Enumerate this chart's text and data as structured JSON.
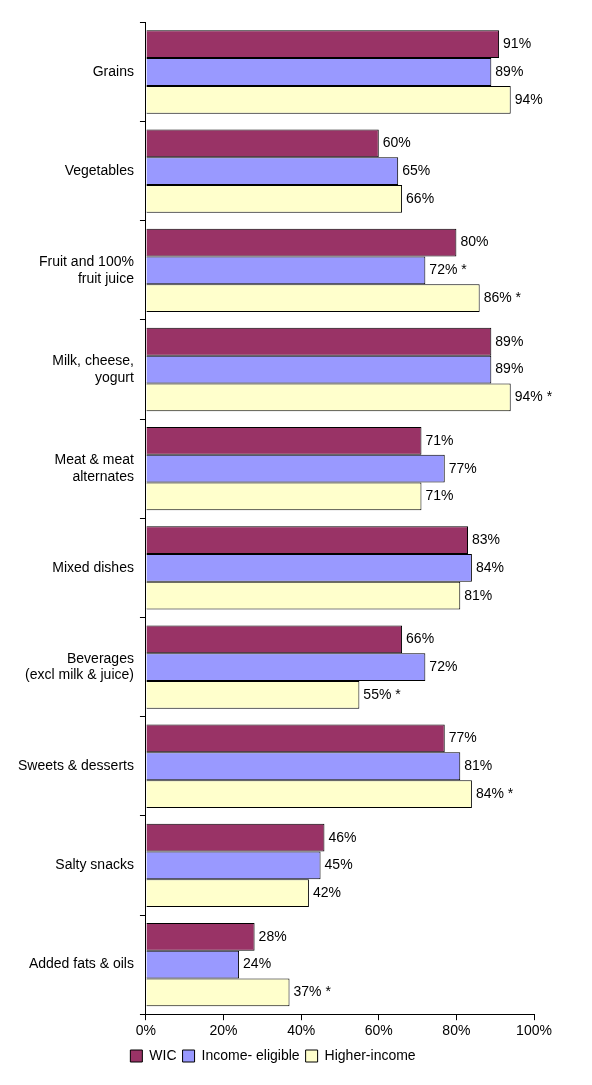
{
  "chart_data": {
    "type": "bar",
    "orientation": "horizontal",
    "categories": [
      "Grains",
      "Vegetables",
      "Fruit and 100%\nfruit juice",
      "Milk, cheese,\nyogurt",
      "Meat & meat\nalternates",
      "Mixed dishes",
      "Beverages\n(excl milk & juice)",
      "Sweets & desserts",
      "Salty snacks",
      "Added fats & oils"
    ],
    "series": [
      {
        "name": "WIC",
        "color": "#993366",
        "values": [
          91,
          60,
          80,
          89,
          71,
          83,
          66,
          77,
          46,
          28
        ],
        "value_labels": [
          "91%",
          "60%",
          "80%",
          "89%",
          "71%",
          "83%",
          "66%",
          "77%",
          "46%",
          "28%"
        ]
      },
      {
        "name": "Income- eligible",
        "color": "#9999ff",
        "values": [
          89,
          65,
          72,
          89,
          77,
          84,
          72,
          81,
          45,
          24
        ],
        "value_labels": [
          "89%",
          "65%",
          "72% *",
          "89%",
          "77%",
          "84%",
          "72%",
          "81%",
          "45%",
          "24%"
        ]
      },
      {
        "name": "Higher-income",
        "color": "#ffffcc",
        "values": [
          94,
          66,
          86,
          94,
          71,
          81,
          55,
          84,
          42,
          37
        ],
        "value_labels": [
          "94%",
          "66%",
          "86% *",
          "94% *",
          "71%",
          "81%",
          "55% *",
          "84% *",
          "42%",
          "37% *"
        ]
      }
    ],
    "xlim": [
      0,
      100
    ],
    "xticks": [
      {
        "value": 0,
        "label": "0%"
      },
      {
        "value": 20,
        "label": "20%"
      },
      {
        "value": 40,
        "label": "40%"
      },
      {
        "value": 60,
        "label": "60%"
      },
      {
        "value": 80,
        "label": "80%"
      },
      {
        "value": 100,
        "label": "100%"
      }
    ],
    "grid": false,
    "legend": "bottom"
  }
}
